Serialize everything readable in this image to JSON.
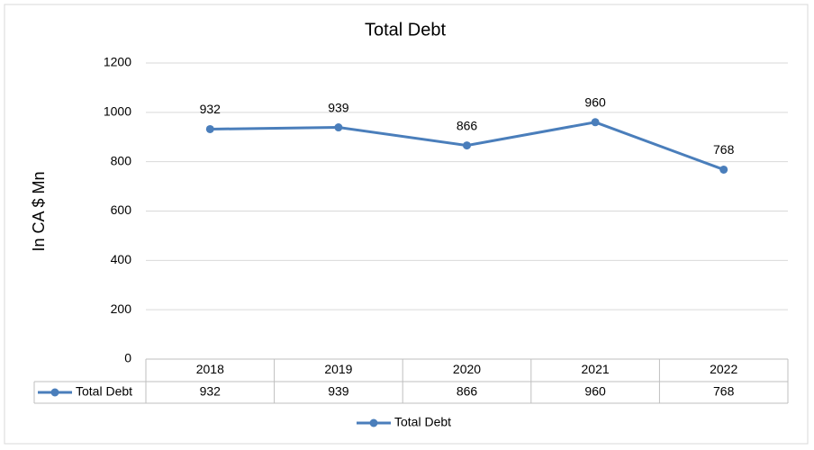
{
  "chart_data": {
    "type": "line",
    "title": "Total Debt",
    "y_label": "In CA $ Mn",
    "categories": [
      "2018",
      "2019",
      "2020",
      "2021",
      "2022"
    ],
    "series": [
      {
        "name": "Total Debt",
        "color": "#4a7ebb",
        "values": [
          932,
          939,
          866,
          960,
          768
        ]
      }
    ],
    "ylim": [
      0,
      1200
    ],
    "yticks": [
      0,
      200,
      400,
      600,
      800,
      1000,
      1200
    ],
    "grid": true,
    "legend": "bottom",
    "data_table": true
  }
}
